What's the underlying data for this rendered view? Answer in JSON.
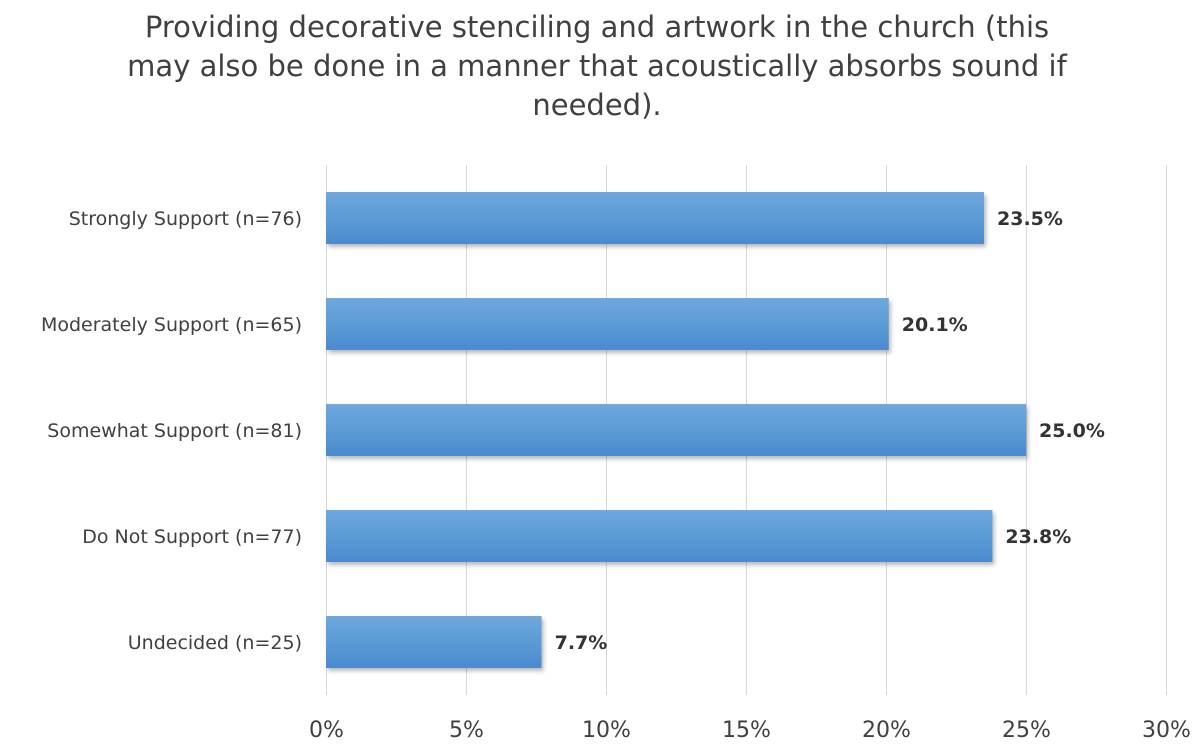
{
  "chart_data": {
    "type": "bar",
    "orientation": "horizontal",
    "title_lines": [
      "Providing decorative stenciling and artwork in the church (this",
      "may also be done in a manner that acoustically absorbs sound if",
      "needed)."
    ],
    "categories": [
      "Strongly Support (n=76)",
      "Moderately Support (n=65)",
      "Somewhat Support (n=81)",
      "Do Not Support (n=77)",
      "Undecided (n=25)"
    ],
    "values": [
      23.5,
      20.1,
      25.0,
      23.8,
      7.7
    ],
    "data_labels": [
      "23.5%",
      "20.1%",
      "25.0%",
      "23.8%",
      "7.7%"
    ],
    "xlim": [
      0,
      30
    ],
    "x_ticks": [
      0,
      5,
      10,
      15,
      20,
      25,
      30
    ],
    "x_tick_labels": [
      "0%",
      "5%",
      "10%",
      "15%",
      "20%",
      "25%",
      "30%"
    ],
    "grid": "vertical",
    "legend": "none",
    "bar_color": "#5B9BD5",
    "bar_color_light": "#6FA7DE",
    "bar_color_dark": "#4A8ACF",
    "gridline_color": "#D9D9D9",
    "text_color": "#404040"
  }
}
